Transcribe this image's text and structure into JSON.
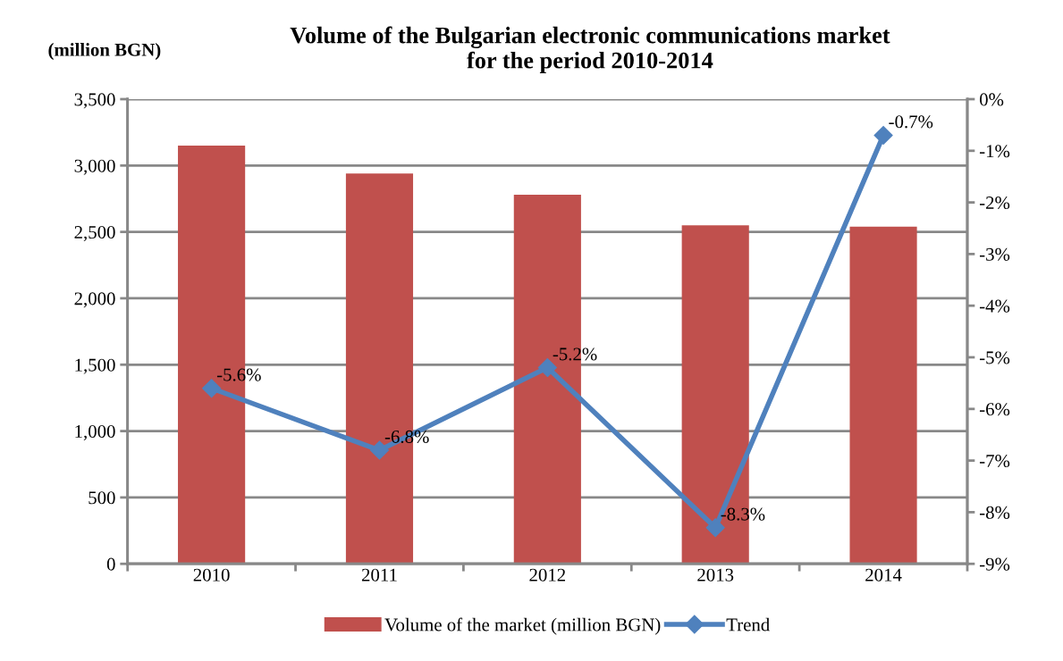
{
  "chart_data": {
    "type": "bar",
    "title": "Volume of the Bulgarian electronic communications market\nfor the period 2010-2014",
    "ylabel": "(million BGN)",
    "categories": [
      "2010",
      "2011",
      "2012",
      "2013",
      "2014"
    ],
    "series": [
      {
        "name": "Volume of the market (million BGN)",
        "color": "#c0504d",
        "values": [
          3150,
          2940,
          2780,
          2550,
          2540
        ]
      },
      {
        "name": "Trend",
        "type": "line",
        "axis": "y2",
        "color": "#4f81bd",
        "marker": "diamond",
        "values": [
          -5.6,
          -6.8,
          -5.2,
          -8.3,
          -0.7
        ],
        "value_labels": [
          "-5.6%",
          "-6.8%",
          "-5.2%",
          "-8.3%",
          "-0.7%"
        ]
      }
    ],
    "ylim": [
      0,
      3500
    ],
    "yticks": [
      {
        "value": 0,
        "label": "0"
      },
      {
        "value": 500,
        "label": "500"
      },
      {
        "value": 1000,
        "label": "1,000"
      },
      {
        "value": 1500,
        "label": "1,500"
      },
      {
        "value": 2000,
        "label": "2,000"
      },
      {
        "value": 2500,
        "label": "2,500"
      },
      {
        "value": 3000,
        "label": "3,000"
      },
      {
        "value": 3500,
        "label": "3,500"
      }
    ],
    "y2lim": [
      -9,
      0
    ],
    "y2ticks": [
      {
        "value": 0,
        "label": "0%"
      },
      {
        "value": -1,
        "label": "-1%"
      },
      {
        "value": -2,
        "label": "-2%"
      },
      {
        "value": -3,
        "label": "-3%"
      },
      {
        "value": -4,
        "label": "-4%"
      },
      {
        "value": -5,
        "label": "-5%"
      },
      {
        "value": -6,
        "label": "-6%"
      },
      {
        "value": -7,
        "label": "-7%"
      },
      {
        "value": -8,
        "label": "-8%"
      },
      {
        "value": -9,
        "label": "-9%"
      }
    ],
    "grid": "y",
    "legend": "bottom"
  }
}
